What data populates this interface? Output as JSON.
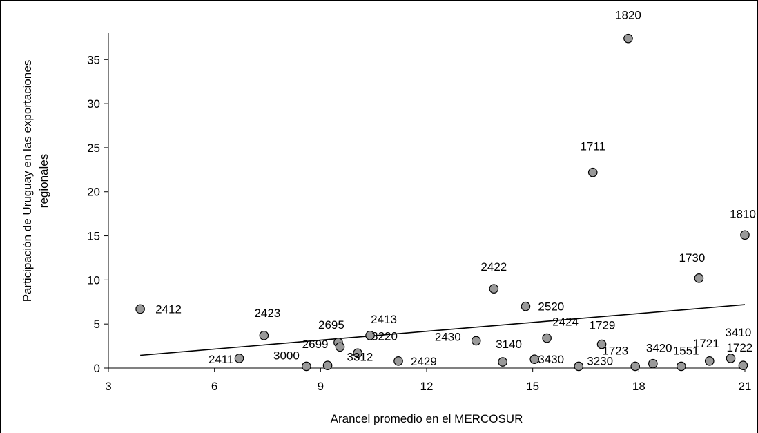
{
  "chart_data": {
    "type": "scatter",
    "title": "",
    "xlabel": "Arancel promedio en el MERCOSUR",
    "ylabel_lines": [
      "Participación de Uruguay en las exportaciones",
      "regionales"
    ],
    "xlim": [
      3,
      21
    ],
    "ylim": [
      0,
      38
    ],
    "xticks": [
      "3",
      "6",
      "9",
      "12",
      "15",
      "18",
      "21"
    ],
    "yticks": [
      "0",
      "5",
      "10",
      "15",
      "20",
      "25",
      "30",
      "35"
    ],
    "grid": false,
    "legend": "none",
    "marker_color": "#999999",
    "points": [
      {
        "label": "2412",
        "x": 3.9,
        "y": 6.7
      },
      {
        "label": "2411",
        "x": 6.7,
        "y": 1.1
      },
      {
        "label": "2423",
        "x": 7.4,
        "y": 3.7
      },
      {
        "label": "3000",
        "x": 8.6,
        "y": 0.2
      },
      {
        "label": "2699",
        "x": 9.2,
        "y": 0.3
      },
      {
        "label": "2695",
        "x": 9.5,
        "y": 2.9
      },
      {
        "label": "3312",
        "x": 9.55,
        "y": 2.4
      },
      {
        "label": "3220",
        "x": 10.05,
        "y": 1.7
      },
      {
        "label": "2413",
        "x": 10.4,
        "y": 3.7
      },
      {
        "label": "2429",
        "x": 11.2,
        "y": 0.8
      },
      {
        "label": "2430",
        "x": 13.4,
        "y": 3.1
      },
      {
        "label": "2422",
        "x": 13.9,
        "y": 9.0
      },
      {
        "label": "3140",
        "x": 14.15,
        "y": 0.7
      },
      {
        "label": "2520",
        "x": 14.8,
        "y": 7.0
      },
      {
        "label": "3430",
        "x": 15.05,
        "y": 1.0
      },
      {
        "label": "2424",
        "x": 15.4,
        "y": 3.4
      },
      {
        "label": "3230",
        "x": 16.3,
        "y": 0.2
      },
      {
        "label": "1711",
        "x": 16.7,
        "y": 22.2
      },
      {
        "label": "1729",
        "x": 16.95,
        "y": 2.7
      },
      {
        "label": "1820",
        "x": 17.7,
        "y": 37.4
      },
      {
        "label": "1723",
        "x": 17.9,
        "y": 0.2
      },
      {
        "label": "3420",
        "x": 18.4,
        "y": 0.5
      },
      {
        "label": "1551",
        "x": 19.2,
        "y": 0.2
      },
      {
        "label": "1730",
        "x": 19.7,
        "y": 10.2
      },
      {
        "label": "1721",
        "x": 20.0,
        "y": 0.8
      },
      {
        "label": "3410",
        "x": 20.6,
        "y": 1.1
      },
      {
        "label": "1722",
        "x": 20.95,
        "y": 0.3
      },
      {
        "label": "1810",
        "x": 21.0,
        "y": 15.1
      }
    ],
    "trendline": {
      "x": [
        3.9,
        21.0
      ],
      "y": [
        1.45,
        7.2
      ]
    }
  }
}
